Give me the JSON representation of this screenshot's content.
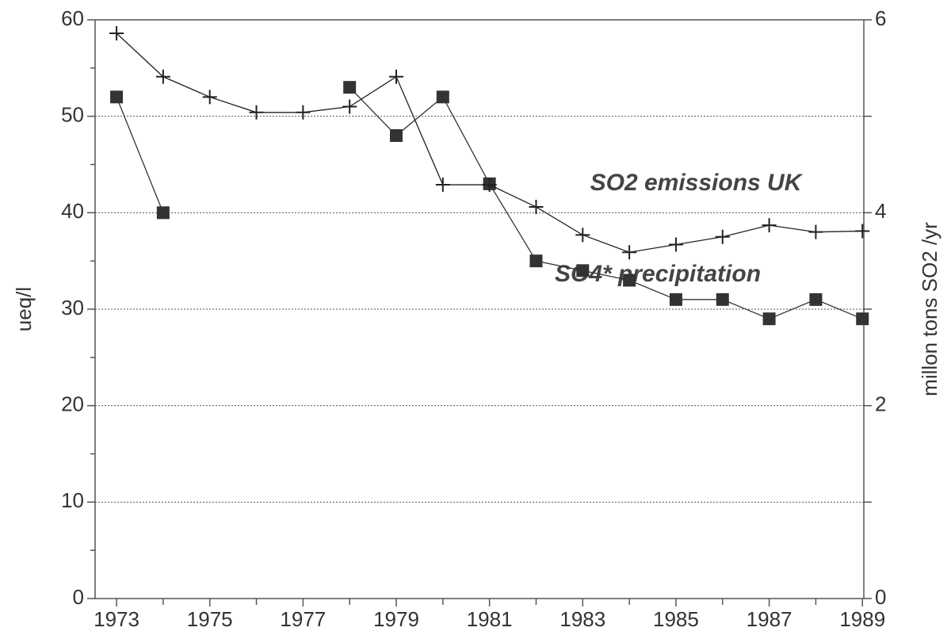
{
  "chart_data": {
    "type": "line",
    "x": [
      1973,
      1974,
      1975,
      1976,
      1977,
      1978,
      1979,
      1980,
      1981,
      1982,
      1983,
      1984,
      1985,
      1986,
      1987,
      1988,
      1989
    ],
    "series": [
      {
        "name": "SO4* precipitation",
        "color": "#333333",
        "marker": "square",
        "axis": "y",
        "values": [
          52,
          40,
          null,
          null,
          null,
          53,
          48,
          52,
          43,
          35,
          34,
          33,
          31,
          31,
          29,
          31,
          29
        ]
      },
      {
        "name": "SO2 emissions UK",
        "color": "#222222",
        "marker": "plus",
        "axis": "y2",
        "values": [
          5.86,
          5.41,
          5.2,
          5.04,
          5.04,
          5.1,
          5.41,
          4.29,
          4.29,
          4.06,
          3.77,
          3.59,
          3.67,
          3.75,
          3.87,
          3.8,
          3.81
        ]
      }
    ],
    "xlim": [
      1972.54,
      1989.03
    ],
    "xticks": [
      1973,
      1975,
      1977,
      1979,
      1981,
      1983,
      1985,
      1987,
      1989
    ],
    "xminorticks": [
      1974,
      1976,
      1978,
      1980,
      1982,
      1984,
      1986,
      1988
    ],
    "ylim": [
      0,
      60
    ],
    "yticks": [
      0,
      10,
      20,
      30,
      40,
      50,
      60
    ],
    "yminorticks": [
      5,
      15,
      25,
      35,
      45,
      55
    ],
    "y2lim": [
      0,
      6
    ],
    "y2ticks": [
      0,
      2,
      4,
      6
    ],
    "y2minorticks": [
      1,
      3,
      5
    ],
    "ylabel": "ueq/l",
    "y2label": "millon tons SO2 /yr",
    "grid": true
  }
}
